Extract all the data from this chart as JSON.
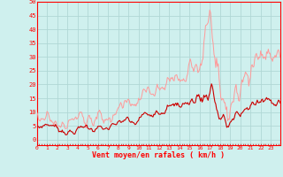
{
  "xlabel": "Vent moyen/en rafales ( km/h )",
  "bg_color": "#cff0ee",
  "grid_color": "#b0d8d5",
  "line_gust_color": "#ff9999",
  "line_mean_color": "#cc0000",
  "line_dir_color": "#cc0000",
  "ylim": [
    0,
    50
  ],
  "yticks": [
    0,
    5,
    10,
    15,
    20,
    25,
    30,
    35,
    40,
    45,
    50
  ],
  "xtick_labels": [
    "0",
    "1",
    "2",
    "3",
    "4",
    "5",
    "6",
    "7",
    "8",
    "9",
    "10",
    "11",
    "12",
    "13",
    "14",
    "15",
    "16",
    "17",
    "18",
    "19",
    "20",
    "21",
    "22",
    "23"
  ],
  "n_points": 288,
  "figsize": [
    3.2,
    2.0
  ],
  "dpi": 100
}
